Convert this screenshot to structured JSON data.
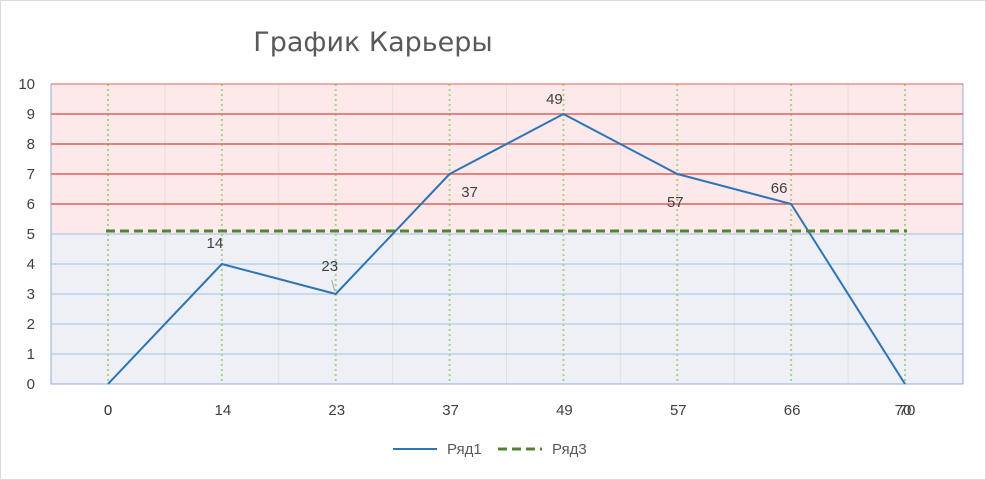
{
  "chart_data": {
    "type": "line",
    "title": "График Карьеры",
    "xlabel": "",
    "ylabel": "",
    "ylim": [
      0,
      10
    ],
    "yticks": [
      "0",
      "1",
      "2",
      "3",
      "4",
      "5",
      "6",
      "7",
      "8",
      "9",
      "10"
    ],
    "x": [
      0,
      14,
      23,
      37,
      49,
      57,
      66,
      70
    ],
    "x_tick_labels": [
      "0",
      "0",
      "14",
      "23",
      "37",
      "49",
      "57",
      "66",
      "70",
      "70"
    ],
    "series": [
      {
        "name": "Ряд1",
        "x": [
          0,
          14,
          23,
          37,
          49,
          57,
          66,
          70
        ],
        "y": [
          0,
          4,
          3,
          7,
          9,
          7,
          6,
          0
        ],
        "data_labels": [
          "",
          "14",
          "23",
          "37",
          "49",
          "57",
          "66",
          ""
        ],
        "color": "#2e75b6",
        "style": "solid"
      },
      {
        "name": "Ряд3",
        "x": [
          0,
          70
        ],
        "y": [
          5.1,
          5.1
        ],
        "color": "#548235",
        "style": "dashed"
      }
    ],
    "bands": [
      {
        "from": 0,
        "to": 5,
        "color": "#eef0f5",
        "line_color": "#9dc3e6"
      },
      {
        "from": 5,
        "to": 10,
        "color": "#fde9ea",
        "line_color": "#e06060"
      }
    ],
    "vertical_guides": [
      0,
      14,
      23,
      37,
      49,
      57,
      66,
      70
    ],
    "guide_color": "#a9d18e",
    "grid": true,
    "legend_position": "bottom"
  }
}
